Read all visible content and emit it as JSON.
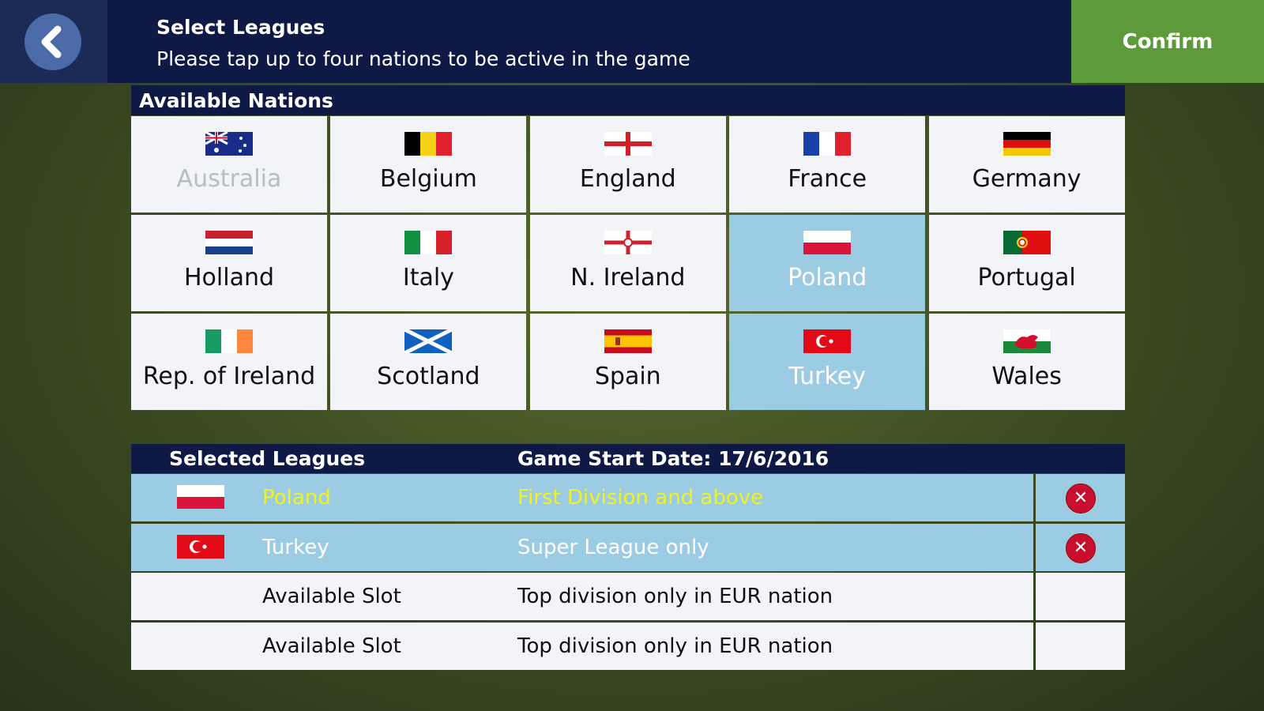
{
  "header": {
    "title": "Select Leagues",
    "subtitle": "Please tap up to four nations to be active in the game",
    "confirm": "Confirm"
  },
  "nations": {
    "title": "Available Nations",
    "items": [
      "Australia",
      "Belgium",
      "England",
      "France",
      "Germany",
      "Holland",
      "Italy",
      "N. Ireland",
      "Poland",
      "Portugal",
      "Rep. of Ireland",
      "Scotland",
      "Spain",
      "Turkey",
      "Wales"
    ]
  },
  "selected": {
    "title": "Selected Leagues",
    "start_date": "Game Start Date: 17/6/2016",
    "rows": [
      {
        "name": "Poland",
        "division": "First Division and above"
      },
      {
        "name": "Turkey",
        "division": "Super League only"
      },
      {
        "name": "Available Slot",
        "division": "Top division only in EUR nation"
      },
      {
        "name": "Available Slot",
        "division": "Top division only in EUR nation"
      }
    ]
  }
}
